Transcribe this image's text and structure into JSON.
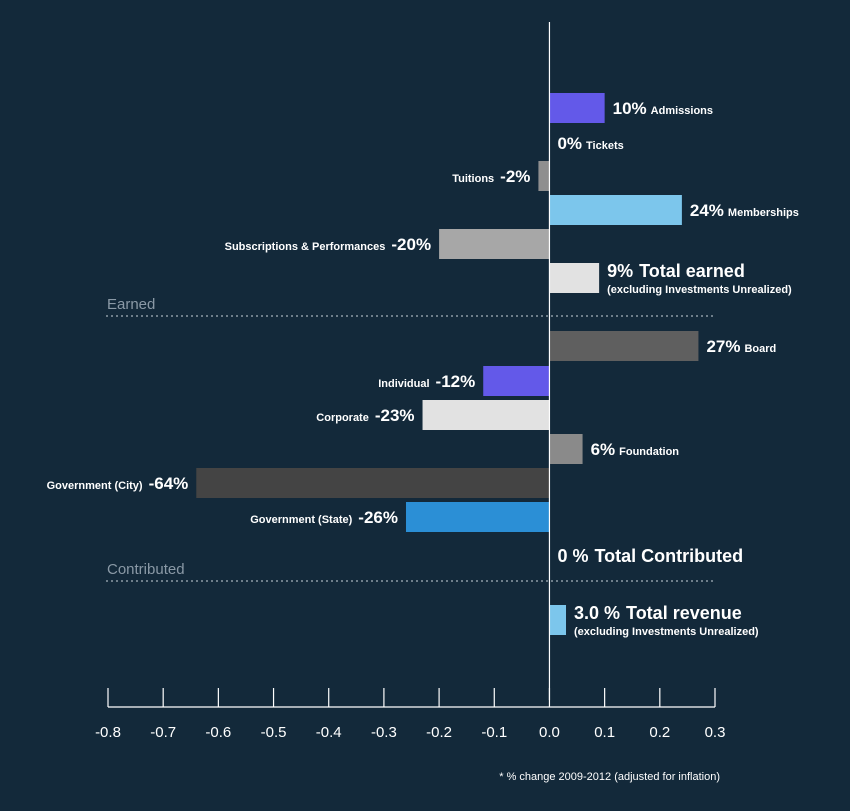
{
  "chart_data": {
    "type": "bar",
    "orientation": "horizontal",
    "xlim": [
      -0.8,
      0.3
    ],
    "xticks": [
      "-0.8",
      "-0.7",
      "-0.6",
      "-0.5",
      "-0.4",
      "-0.3",
      "-0.2",
      "-0.1",
      "0.0",
      "0.1",
      "0.2",
      "0.3"
    ],
    "bars": [
      {
        "category": "Admissions",
        "value": 0.1,
        "pct_text": "10%",
        "color": "#6359e9"
      },
      {
        "category": "Tickets",
        "value": 0.0,
        "pct_text": "0%",
        "color": "#9a9a9a"
      },
      {
        "category": "Tuitions",
        "value": -0.02,
        "pct_text": "-2%",
        "color": "#8f8f8f"
      },
      {
        "category": "Memberships",
        "value": 0.24,
        "pct_text": "24%",
        "color": "#7cc6ec"
      },
      {
        "category": "Subscriptions & Performances",
        "value": -0.2,
        "pct_text": "-20%",
        "color": "#a7a7a7"
      },
      {
        "category": "Total earned",
        "value": 0.09,
        "pct_text": "9%",
        "sub": "(excluding Investments Unrealized)",
        "color": "#e2e2e2"
      },
      {
        "category": "Board",
        "value": 0.27,
        "pct_text": "27%",
        "color": "#5f5f5f"
      },
      {
        "category": "Individual",
        "value": -0.12,
        "pct_text": "-12%",
        "color": "#6359e9"
      },
      {
        "category": "Corporate",
        "value": -0.23,
        "pct_text": "-23%",
        "color": "#e2e2e2"
      },
      {
        "category": "Foundation",
        "value": 0.06,
        "pct_text": "6%",
        "color": "#8a8a8a"
      },
      {
        "category": "Government (City)",
        "value": -0.64,
        "pct_text": "-64%",
        "color": "#444444"
      },
      {
        "category": "Government (State)",
        "value": -0.26,
        "pct_text": "-26%",
        "color": "#2b8fd6"
      },
      {
        "category": "Total Contributed",
        "value": 0.0,
        "pct_text": "0 %",
        "color": "#9a9a9a"
      },
      {
        "category": "Total revenue",
        "value": 0.03,
        "pct_text": "3.0 %",
        "sub": "(excluding Investments Unrealized)",
        "color": "#7cc6ec"
      }
    ],
    "sections": [
      "Earned",
      "Contributed"
    ],
    "footnote": "* % change 2009-2012 (adjusted for inflation)"
  }
}
